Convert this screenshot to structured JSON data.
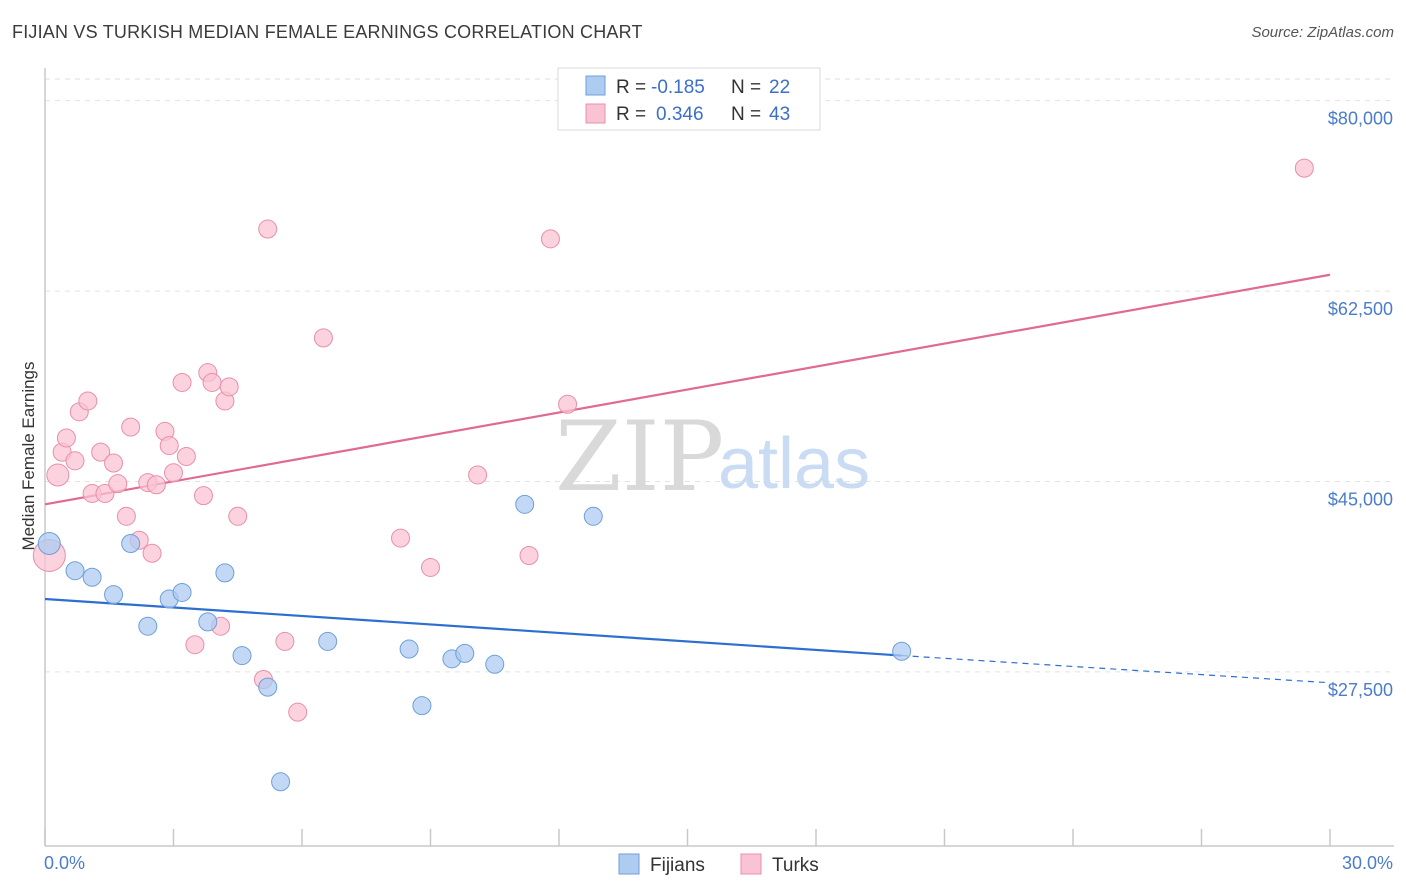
{
  "title": "FIJIAN VS TURKISH MEDIAN FEMALE EARNINGS CORRELATION CHART",
  "source": "Source: ZipAtlas.com",
  "watermark": {
    "zip": "ZIP",
    "atlas": "atlas"
  },
  "legend_top": [
    {
      "r_label": "R =",
      "r_value": "-0.185",
      "n_label": "N =",
      "n_value": "22",
      "color": "#aecbf0",
      "stroke": "#6f9fd8"
    },
    {
      "r_label": "R =",
      "r_value": "0.346",
      "n_label": "N =",
      "n_value": "43",
      "color": "#f9c3d3",
      "stroke": "#e88fab"
    }
  ],
  "legend_bottom": [
    {
      "label": "Fijians",
      "color": "#aecbf0",
      "stroke": "#6f9fd8"
    },
    {
      "label": "Turks",
      "color": "#f9c3d3",
      "stroke": "#e88fab"
    }
  ],
  "chart_data": {
    "type": "scatter",
    "title": "FIJIAN VS TURKISH MEDIAN FEMALE EARNINGS CORRELATION CHART",
    "xlabel": "",
    "ylabel": "Median Female Earnings",
    "xlim": [
      0,
      30
    ],
    "ylim": [
      11500,
      83000
    ],
    "x_tick_labels": [
      "0.0%",
      "30.0%"
    ],
    "y_ticks": [
      27500,
      45000,
      62500,
      80000
    ],
    "y_tick_labels": [
      "$27,500",
      "$45,000",
      "$62,500",
      "$80,000"
    ],
    "series": [
      {
        "name": "Fijians",
        "color": "#6f9fd8",
        "fill": "#aecbf0",
        "trend": {
          "x": [
            0,
            20
          ],
          "y": [
            34200,
            29000
          ],
          "dash_to": [
            30,
            26500
          ],
          "color": "#2d6fd0"
        },
        "points": [
          [
            0.1,
            39300,
            11
          ],
          [
            0.7,
            36800,
            9
          ],
          [
            1.1,
            36200,
            9
          ],
          [
            1.6,
            34600,
            9
          ],
          [
            2.0,
            39300,
            9
          ],
          [
            2.4,
            31700,
            9
          ],
          [
            2.9,
            34200,
            9
          ],
          [
            3.2,
            34800,
            9
          ],
          [
            3.8,
            32100,
            9
          ],
          [
            4.2,
            36600,
            9
          ],
          [
            4.6,
            29000,
            9
          ],
          [
            5.2,
            26100,
            9
          ],
          [
            5.5,
            17400,
            9
          ],
          [
            6.6,
            30300,
            9
          ],
          [
            8.5,
            29600,
            9
          ],
          [
            8.8,
            24400,
            9
          ],
          [
            9.5,
            28700,
            9
          ],
          [
            9.8,
            29200,
            9
          ],
          [
            10.5,
            28200,
            9
          ],
          [
            11.2,
            42900,
            9
          ],
          [
            12.8,
            41800,
            9
          ],
          [
            20.0,
            29400,
            9
          ]
        ]
      },
      {
        "name": "Turks",
        "color": "#e88fab",
        "fill": "#f9c3d3",
        "trend": {
          "x": [
            0,
            30
          ],
          "y": [
            42900,
            64000
          ],
          "color": "#e06a92"
        },
        "points": [
          [
            0.1,
            38200,
            16
          ],
          [
            0.3,
            45600,
            11
          ],
          [
            0.4,
            47700,
            9
          ],
          [
            0.5,
            49000,
            9
          ],
          [
            0.7,
            46900,
            9
          ],
          [
            0.8,
            51400,
            9
          ],
          [
            1.0,
            52400,
            9
          ],
          [
            1.1,
            43900,
            9
          ],
          [
            1.3,
            47700,
            9
          ],
          [
            1.4,
            43900,
            9
          ],
          [
            1.6,
            46700,
            9
          ],
          [
            1.7,
            44800,
            9
          ],
          [
            1.9,
            41800,
            9
          ],
          [
            2.0,
            50000,
            9
          ],
          [
            2.2,
            39600,
            9
          ],
          [
            2.4,
            44900,
            9
          ],
          [
            2.5,
            38400,
            9
          ],
          [
            2.6,
            44700,
            9
          ],
          [
            2.8,
            49600,
            9
          ],
          [
            2.9,
            48300,
            9
          ],
          [
            3.0,
            45800,
            9
          ],
          [
            3.2,
            54100,
            9
          ],
          [
            3.3,
            47300,
            9
          ],
          [
            3.5,
            30000,
            9
          ],
          [
            3.7,
            43700,
            9
          ],
          [
            3.8,
            55000,
            9
          ],
          [
            3.9,
            54100,
            9
          ],
          [
            4.1,
            31700,
            9
          ],
          [
            4.2,
            52400,
            9
          ],
          [
            4.3,
            53700,
            9
          ],
          [
            4.5,
            41800,
            9
          ],
          [
            5.1,
            26800,
            9
          ],
          [
            5.2,
            68200,
            9
          ],
          [
            5.6,
            30300,
            9
          ],
          [
            5.9,
            23800,
            9
          ],
          [
            6.5,
            58200,
            9
          ],
          [
            8.3,
            39800,
            9
          ],
          [
            9.0,
            37100,
            9
          ],
          [
            10.1,
            45600,
            9
          ],
          [
            11.3,
            38200,
            9
          ],
          [
            11.8,
            67300,
            9
          ],
          [
            12.2,
            52100,
            9
          ],
          [
            29.4,
            73800,
            9
          ]
        ]
      }
    ]
  }
}
